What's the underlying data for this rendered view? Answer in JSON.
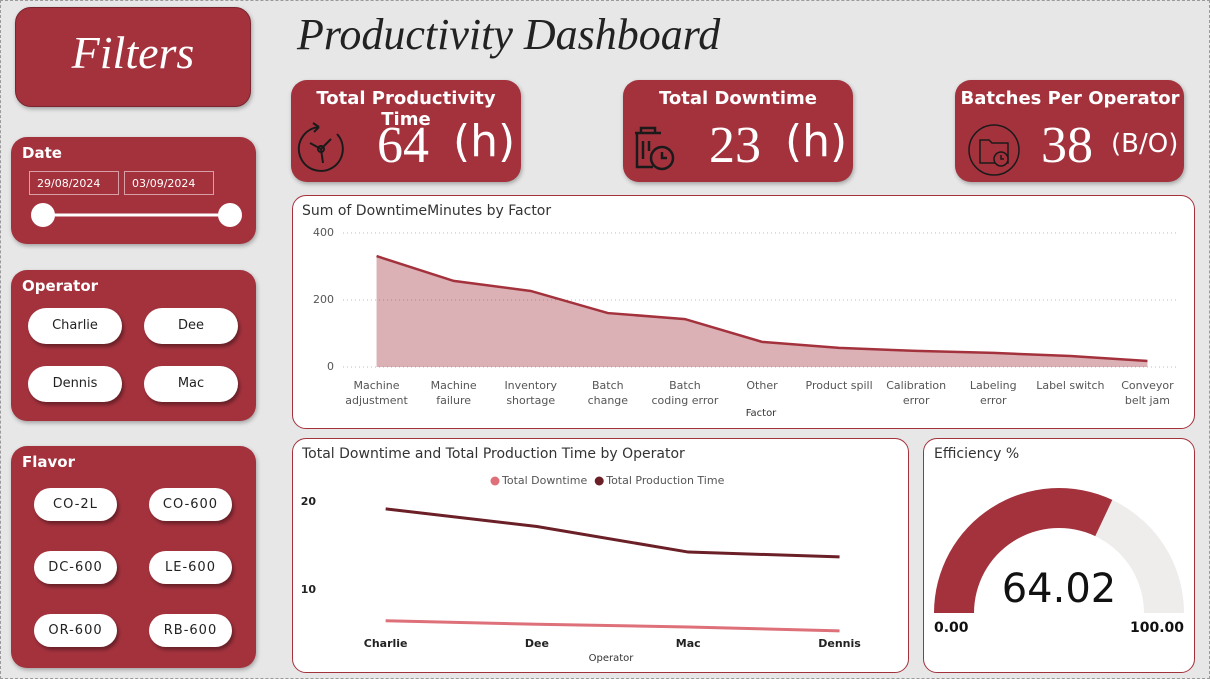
{
  "title": "Productivity Dashboard",
  "filters": {
    "title": "Filters",
    "date": {
      "label": "Date",
      "start": "29/08/2024",
      "end": "03/09/2024"
    },
    "operator": {
      "label": "Operator",
      "options": [
        "Charlie",
        "Dee",
        "Dennis",
        "Mac"
      ]
    },
    "flavor": {
      "label": "Flavor",
      "options": [
        "CO-2L",
        "CO-600",
        "DC-600",
        "LE-600",
        "OR-600",
        "RB-600"
      ]
    }
  },
  "kpis": [
    {
      "title": "Total Productivity Time",
      "value": 64,
      "unit": "(h)"
    },
    {
      "title": "Total Downtime",
      "value": 23,
      "unit": "(h)"
    },
    {
      "title": "Batches Per Operator",
      "value": 38,
      "unit": "(B/O)"
    }
  ],
  "chart_data": [
    {
      "type": "area",
      "title": "Sum of DowntimeMinutes by Factor",
      "x_label": "Factor",
      "categories": [
        "Machine adjustment",
        "Machine failure",
        "Inventory shortage",
        "Batch change",
        "Batch coding error",
        "Other",
        "Product spill",
        "Calibration error",
        "Labeling error",
        "Label switch",
        "Conveyor belt jam"
      ],
      "values": [
        331,
        257,
        227,
        161,
        143,
        75,
        57,
        48,
        42,
        33,
        18
      ],
      "color": "#a3323d",
      "ylim": [
        0,
        400
      ],
      "yticks": [
        0,
        200,
        400
      ],
      "grid": true
    },
    {
      "type": "line",
      "title": "Total Downtime and Total Production Time by Operator",
      "x_label": "Operator",
      "categories": [
        "Charlie",
        "Dee",
        "Mac",
        "Dennis"
      ],
      "series": [
        {
          "name": "Total Downtime",
          "color": "#de7079",
          "values": [
            6.5,
            6.1,
            5.8,
            5.35
          ]
        },
        {
          "name": "Total Production Time",
          "color": "#6b1f27",
          "values": [
            19.2,
            17.2,
            14.3,
            13.75
          ]
        }
      ],
      "ylim": [
        5,
        21
      ],
      "yticks": [
        10,
        20
      ],
      "grid": false,
      "legend": "top"
    },
    {
      "type": "gauge",
      "title": "Efficiency %",
      "value": 64.02,
      "color": "#a3323d",
      "ylim": [
        0,
        100
      ],
      "yticks": [
        {
          "value": 0,
          "label": "0.00"
        },
        {
          "value": 100,
          "label": "100.00"
        }
      ]
    }
  ]
}
